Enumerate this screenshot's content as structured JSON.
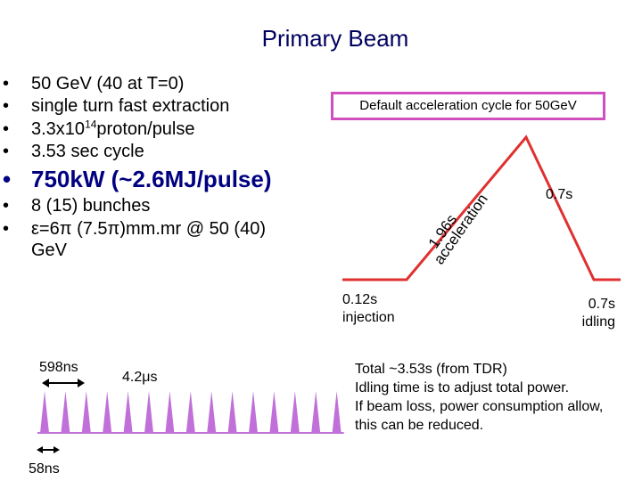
{
  "title": "Primary Beam",
  "bullets_top": [
    {
      "marker": "•",
      "text": "50 GeV (40 at T=0)"
    },
    {
      "marker": "•",
      "text": "single turn fast extraction"
    },
    {
      "marker": "•",
      "text_pre": "3.3x10",
      "text_sup": "14",
      "text_post": "proton/pulse"
    },
    {
      "marker": "•",
      "text": "3.53 sec cycle"
    }
  ],
  "bullet_big": {
    "marker": "•",
    "text": "750kW (~2.6MJ/pulse)"
  },
  "bullets_bottom": [
    {
      "marker": "•",
      "text": "8 (15) bunches"
    },
    {
      "marker": "•",
      "line1": "ε=6π (7.5π)mm.mr @ 50 (40)",
      "line2": "GeV"
    }
  ],
  "cycle_box": "Default acceleration cycle for 50GeV",
  "cycle": {
    "accel_time": "1.96s",
    "accel_word": "acceleration",
    "flat_time": "0.7s",
    "injection": {
      "time": "0.12s",
      "word": "injection"
    },
    "idling": {
      "time": "0.7s",
      "word": "idling"
    },
    "line_color": "#e03030"
  },
  "bunches": {
    "spacing_label": "598ns",
    "gap_label": "4.2μs",
    "width_label": "58ns",
    "count": 15,
    "color": "#c070d8",
    "arrow_color": "#000000"
  },
  "notes": [
    "Total ~3.53s (from TDR)",
    "Idling time is to adjust total power.",
    "If beam loss, power consumption allow,",
    "this can be reduced."
  ]
}
